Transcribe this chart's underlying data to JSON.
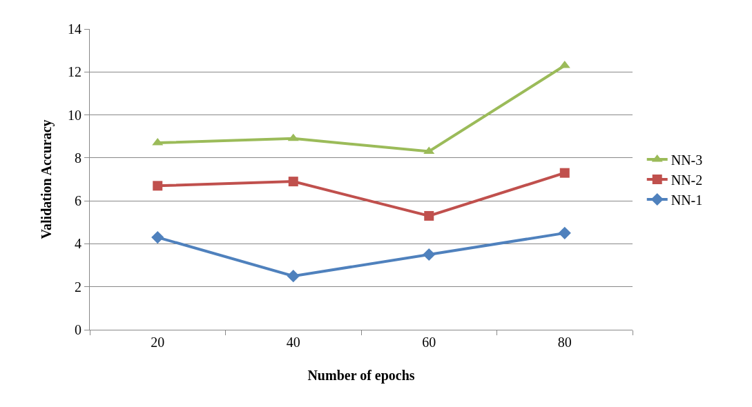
{
  "chart_data": {
    "type": "line",
    "xlabel": "Number of epochs",
    "ylabel": "Validation Accuracy",
    "categories": [
      "20",
      "40",
      "60",
      "80"
    ],
    "series": [
      {
        "name": "NN-3",
        "color": "#9bbb59",
        "marker": "triangle",
        "values": [
          8.7,
          8.9,
          8.3,
          12.3
        ]
      },
      {
        "name": "NN-2",
        "color": "#c0504d",
        "marker": "square",
        "values": [
          6.7,
          6.9,
          5.3,
          7.3
        ]
      },
      {
        "name": "NN-1",
        "color": "#4f81bd",
        "marker": "diamond",
        "values": [
          4.3,
          2.5,
          3.5,
          4.5
        ]
      }
    ],
    "ylim": [
      0,
      14
    ],
    "yticks": [
      0,
      2,
      4,
      6,
      8,
      10,
      12,
      14
    ],
    "grid": "y",
    "legend": "right",
    "line_style": "solid"
  }
}
